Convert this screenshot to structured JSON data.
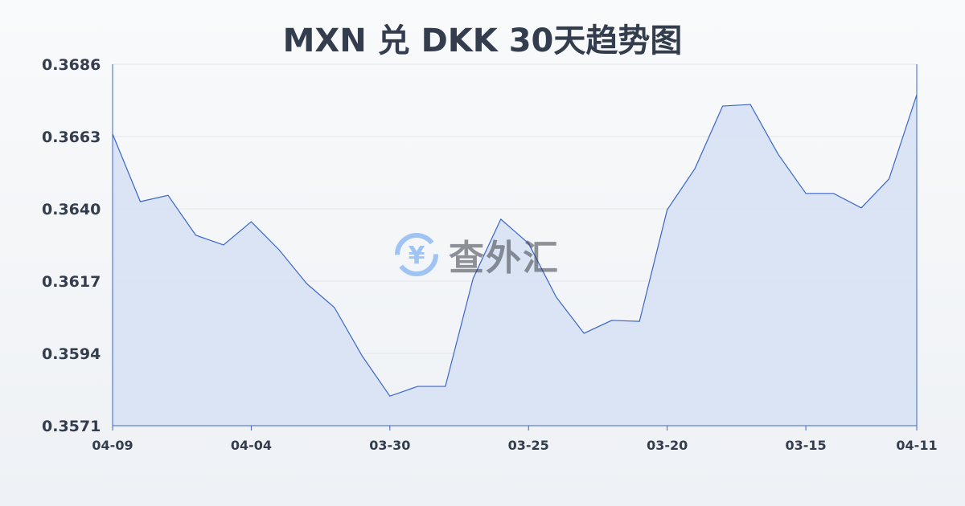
{
  "chart_data": {
    "type": "area",
    "title": "MXN 兑 DKK 30天趋势图",
    "xlabel": "",
    "ylabel": "",
    "x_tick_labels": [
      "04-09",
      "04-04",
      "03-30",
      "03-25",
      "03-20",
      "03-15",
      "04-11"
    ],
    "y_tick_labels": [
      "0.3686",
      "0.3663",
      "0.3640",
      "0.3617",
      "0.3594",
      "0.3571"
    ],
    "ylim": [
      0.3571,
      0.3686
    ],
    "grid": true,
    "values": [
      0.36638,
      0.36423,
      0.36443,
      0.36316,
      0.36285,
      0.36359,
      0.3627,
      0.36162,
      0.36086,
      0.35932,
      0.35804,
      0.35835,
      0.35835,
      0.36178,
      0.36367,
      0.3629,
      0.36119,
      0.36004,
      0.36045,
      0.36042,
      0.36397,
      0.36528,
      0.36727,
      0.36732,
      0.36574,
      0.36449,
      0.36449,
      0.36403,
      0.36495,
      0.36763
    ],
    "colors": {
      "line": "#3a66c9",
      "fill": "#d6e0f5"
    }
  },
  "watermark": {
    "text": "查外汇",
    "icon": "yen-exchange-icon"
  }
}
